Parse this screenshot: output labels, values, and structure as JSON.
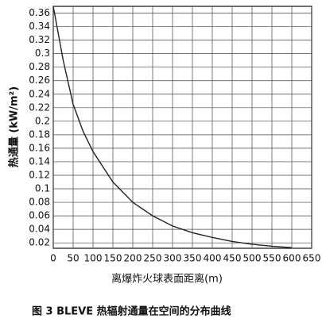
{
  "chart_data": {
    "type": "line",
    "title": "图 3  BLEVE 热辐射通量在空间的分布曲线",
    "x_label": "离爆炸火球表面距离(m)",
    "y_label": "热通量 (kW/m²)",
    "x": [
      0,
      25,
      50,
      75,
      100,
      150,
      200,
      250,
      300,
      350,
      400,
      450,
      500,
      550,
      600
    ],
    "series": [
      {
        "color": "#222222",
        "values": [
          0.37,
          0.29,
          0.225,
          0.185,
          0.155,
          0.11,
          0.08,
          0.06,
          0.045,
          0.035,
          0.028,
          0.022,
          0.018,
          0.015,
          0.013
        ]
      }
    ],
    "xlim": [
      0,
      650
    ],
    "xticks": [
      0,
      50,
      100,
      150,
      200,
      250,
      300,
      350,
      400,
      450,
      500,
      550,
      600,
      650
    ],
    "ylim": [
      0.012,
      0.37
    ],
    "yticks": [
      0.02,
      0.04,
      0.06,
      0.08,
      0.1,
      0.12,
      0.14,
      0.16,
      0.18,
      0.2,
      0.22,
      0.24,
      0.26,
      0.28,
      0.3,
      0.32,
      0.34,
      0.36
    ],
    "grid": true
  }
}
